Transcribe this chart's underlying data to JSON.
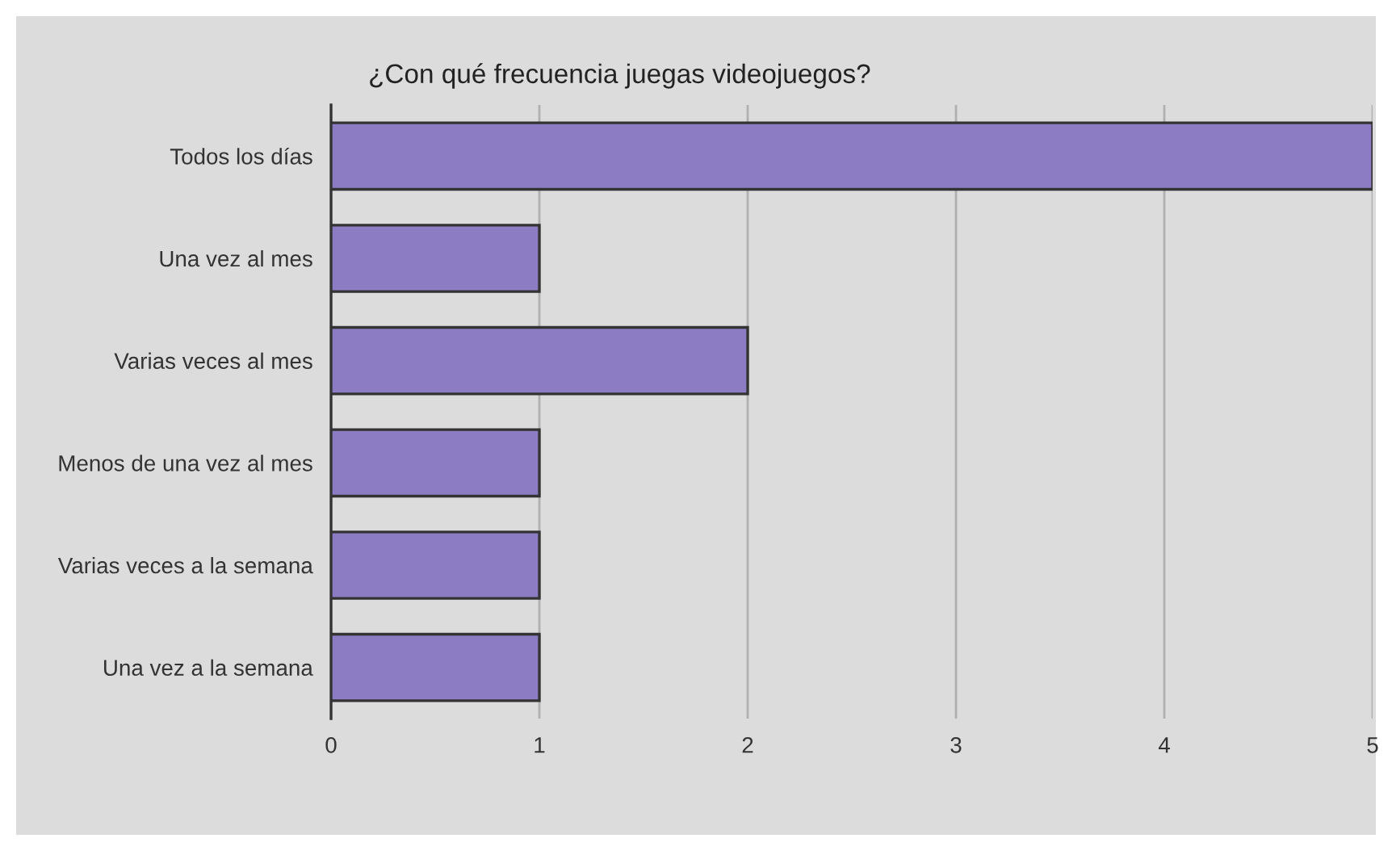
{
  "chart_data": {
    "type": "bar",
    "orientation": "horizontal",
    "title": "¿Con qué frecuencia juegas videojuegos?",
    "categories": [
      "Todos los días",
      "Una vez al mes",
      "Varias veces al mes",
      "Menos de una vez al mes",
      "Varias veces a la semana",
      "Una vez a la semana"
    ],
    "values": [
      5,
      1,
      2,
      1,
      1,
      1
    ],
    "color": "#8c7cc4",
    "xlim": [
      0,
      5
    ],
    "xticks": [
      0,
      1,
      2,
      3,
      4,
      5
    ],
    "grid": "x",
    "legend": false
  }
}
